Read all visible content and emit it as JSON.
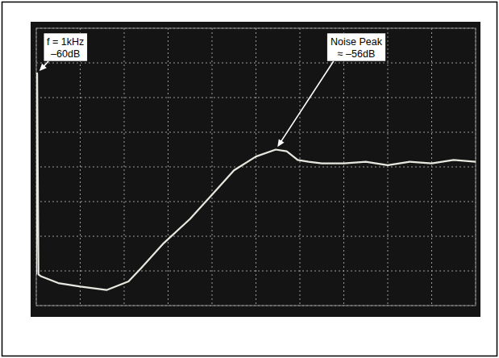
{
  "chart_data": {
    "type": "line",
    "x": [
      0,
      0.02,
      0.05,
      0.1,
      0.5,
      1.0,
      1.6,
      2.1,
      2.4,
      2.9,
      3.5,
      4.0,
      4.5,
      5.0,
      5.45,
      5.7,
      5.95,
      6.2,
      6.5,
      7.0,
      7.5,
      8.0,
      8.5,
      9.0,
      9.5,
      10
    ],
    "values": [
      0.9,
      6.7,
      0.9,
      0.85,
      0.65,
      0.55,
      0.45,
      0.7,
      1.1,
      1.8,
      2.5,
      3.2,
      3.9,
      4.3,
      4.5,
      4.45,
      4.2,
      4.15,
      4.1,
      4.1,
      4.15,
      4.05,
      4.15,
      4.1,
      4.2,
      4.15
    ],
    "color": "#e8e8e0",
    "xlim": [
      0,
      10
    ],
    "ylim": [
      0,
      8
    ],
    "xticks": [
      0,
      1,
      2,
      3,
      4,
      5,
      6,
      7,
      8,
      9,
      10
    ],
    "yticks": [
      0,
      1,
      2,
      3,
      4,
      5,
      6,
      7,
      8
    ],
    "grid": true,
    "tick_labels": false,
    "annotations": [
      {
        "lines": [
          "f = 1kHz",
          "–60dB"
        ],
        "x": 0.02,
        "y": 6.7
      },
      {
        "lines": [
          "Noise Peak",
          "≈ –56dB"
        ],
        "x": 5.45,
        "y": 4.5
      }
    ]
  }
}
